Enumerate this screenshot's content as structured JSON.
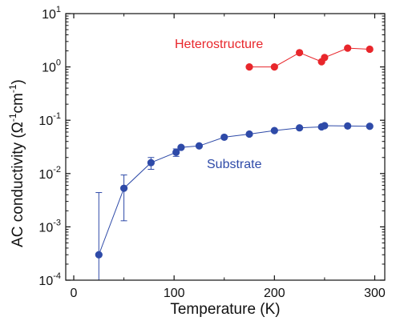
{
  "chart_data": {
    "type": "scatter",
    "xlabel": "Temperature (K)",
    "ylabel_main": "AC conductivity (",
    "ylabel_unit": "Ω",
    "ylabel_exp1": "-1",
    "ylabel_mid": "cm",
    "ylabel_exp2": "-1",
    "ylabel_end": ")",
    "xlim": [
      -8,
      310
    ],
    "ylim": [
      0.0001,
      10
    ],
    "yscale": "log",
    "x_ticks": [
      0,
      100,
      200,
      300
    ],
    "x_tick_labels": [
      "0",
      "100",
      "200",
      "300"
    ],
    "y_ticks": [
      10,
      1,
      0.1,
      0.01,
      0.001,
      0.0001
    ],
    "y_tick_labels": [
      {
        "base": "10",
        "exp": "1"
      },
      {
        "base": "10",
        "exp": "0"
      },
      {
        "base": "10",
        "exp": "-1"
      },
      {
        "base": "10",
        "exp": "-2"
      },
      {
        "base": "10",
        "exp": "-3"
      },
      {
        "base": "10",
        "exp": "-4"
      }
    ],
    "series": [
      {
        "name": "Heterostructure",
        "color": "#e8262b",
        "x": [
          175,
          200,
          225,
          247,
          250,
          273,
          295
        ],
        "y": [
          1.0,
          1.0,
          1.85,
          1.25,
          1.5,
          2.25,
          2.15
        ]
      },
      {
        "name": "Substrate",
        "color": "#2e4aa8",
        "x": [
          25,
          50,
          77,
          102,
          107,
          125,
          150,
          175,
          200,
          225,
          247,
          250,
          273,
          295
        ],
        "y": [
          0.0003,
          0.0053,
          0.016,
          0.025,
          0.031,
          0.033,
          0.048,
          0.055,
          0.064,
          0.072,
          0.075,
          0.079,
          0.078,
          0.077
        ],
        "err_low": [
          0.0001,
          0.0013,
          0.012,
          0.021,
          0.027,
          0.03,
          0.044,
          0.052,
          0.061,
          0.069,
          0.072,
          0.076,
          0.075,
          0.074
        ],
        "err_high": [
          0.0044,
          0.0094,
          0.02,
          0.029,
          0.035,
          0.036,
          0.052,
          0.058,
          0.067,
          0.075,
          0.078,
          0.082,
          0.081,
          0.08
        ]
      }
    ]
  }
}
